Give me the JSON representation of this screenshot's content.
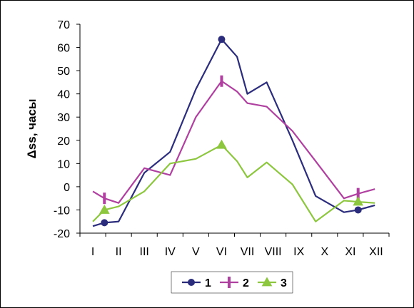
{
  "chart_data": {
    "type": "line",
    "title": "",
    "xlabel": "",
    "ylabel": "Δss, часы",
    "ylim": [
      -20,
      70
    ],
    "yticks": [
      "70",
      "60",
      "50",
      "40",
      "30",
      "20",
      "10",
      "0",
      "-10",
      "-20"
    ],
    "categories": [
      "I",
      "II",
      "III",
      "IV",
      "V",
      "VI",
      "VII",
      "VIII",
      "IX",
      "X",
      "XI",
      "XII"
    ],
    "grid": false,
    "legend": "bottom",
    "series": [
      {
        "name": "1",
        "color": "#2b2c7c",
        "marker": "circle",
        "x": [
          0.0,
          0.45,
          1.0,
          2.0,
          3.0,
          4.0,
          5.0,
          5.6,
          6.0,
          6.75,
          7.75,
          8.65,
          9.75,
          10.3,
          10.95
        ],
        "values": [
          -17,
          -15.5,
          -15,
          6,
          15,
          42,
          63.5,
          56,
          40,
          45,
          20,
          -4,
          -11,
          -10,
          -8
        ],
        "marker_x": [
          0.45,
          5.0,
          10.3
        ],
        "marker_values": [
          -15.5,
          63.5,
          -10
        ]
      },
      {
        "name": "2",
        "color": "#b040a0",
        "marker": "bar",
        "x": [
          0.0,
          0.45,
          1.0,
          2.0,
          3.0,
          4.0,
          5.0,
          5.6,
          6.0,
          6.75,
          7.75,
          8.65,
          9.75,
          10.3,
          10.95
        ],
        "values": [
          -2,
          -5,
          -7,
          8,
          5,
          30,
          45.5,
          41,
          36,
          34.5,
          24,
          11,
          -5,
          -3,
          -1
        ],
        "marker_x": [
          0.45,
          5.0,
          10.3
        ],
        "marker_values": [
          -5,
          45.5,
          -3
        ]
      },
      {
        "name": "3",
        "color": "#8dc63f",
        "marker": "triangle",
        "x": [
          0.0,
          0.45,
          1.0,
          2.0,
          3.0,
          4.0,
          5.0,
          5.6,
          6.0,
          6.75,
          7.75,
          8.65,
          9.75,
          10.3,
          10.95
        ],
        "values": [
          -15,
          -10,
          -8.5,
          -2,
          10,
          12,
          18,
          11,
          4,
          10.5,
          1,
          -15,
          -6,
          -6.5,
          -7
        ],
        "marker_x": [
          0.45,
          5.0,
          10.3
        ],
        "marker_values": [
          -10,
          18,
          -6.5
        ]
      }
    ]
  }
}
